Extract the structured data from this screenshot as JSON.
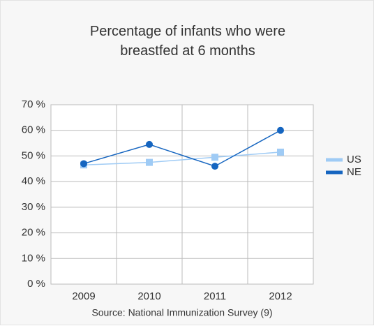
{
  "chart_data": {
    "type": "line",
    "title": "Percentage of infants who were breastfed at 6 months",
    "source": "Source: National Immunization Survey (9)",
    "categories": [
      "2009",
      "2010",
      "2011",
      "2012"
    ],
    "series": [
      {
        "name": "US",
        "color": "#9fcbf5",
        "marker": "square",
        "values": [
          46.5,
          47.5,
          49.5,
          51.5
        ]
      },
      {
        "name": "NE",
        "color": "#1565c0",
        "marker": "circle",
        "values": [
          47,
          54.5,
          46,
          60
        ]
      }
    ],
    "ylim": [
      0,
      70
    ],
    "yticks": [
      {
        "value": 0,
        "label": "0 %"
      },
      {
        "value": 10,
        "label": "10 %"
      },
      {
        "value": 20,
        "label": "20 %"
      },
      {
        "value": 30,
        "label": "30 %"
      },
      {
        "value": 40,
        "label": "40 %"
      },
      {
        "value": 50,
        "label": "50 %"
      },
      {
        "value": 60,
        "label": "60 %"
      },
      {
        "value": 70,
        "label": "70 %"
      }
    ],
    "grid": true,
    "legend": "right"
  }
}
